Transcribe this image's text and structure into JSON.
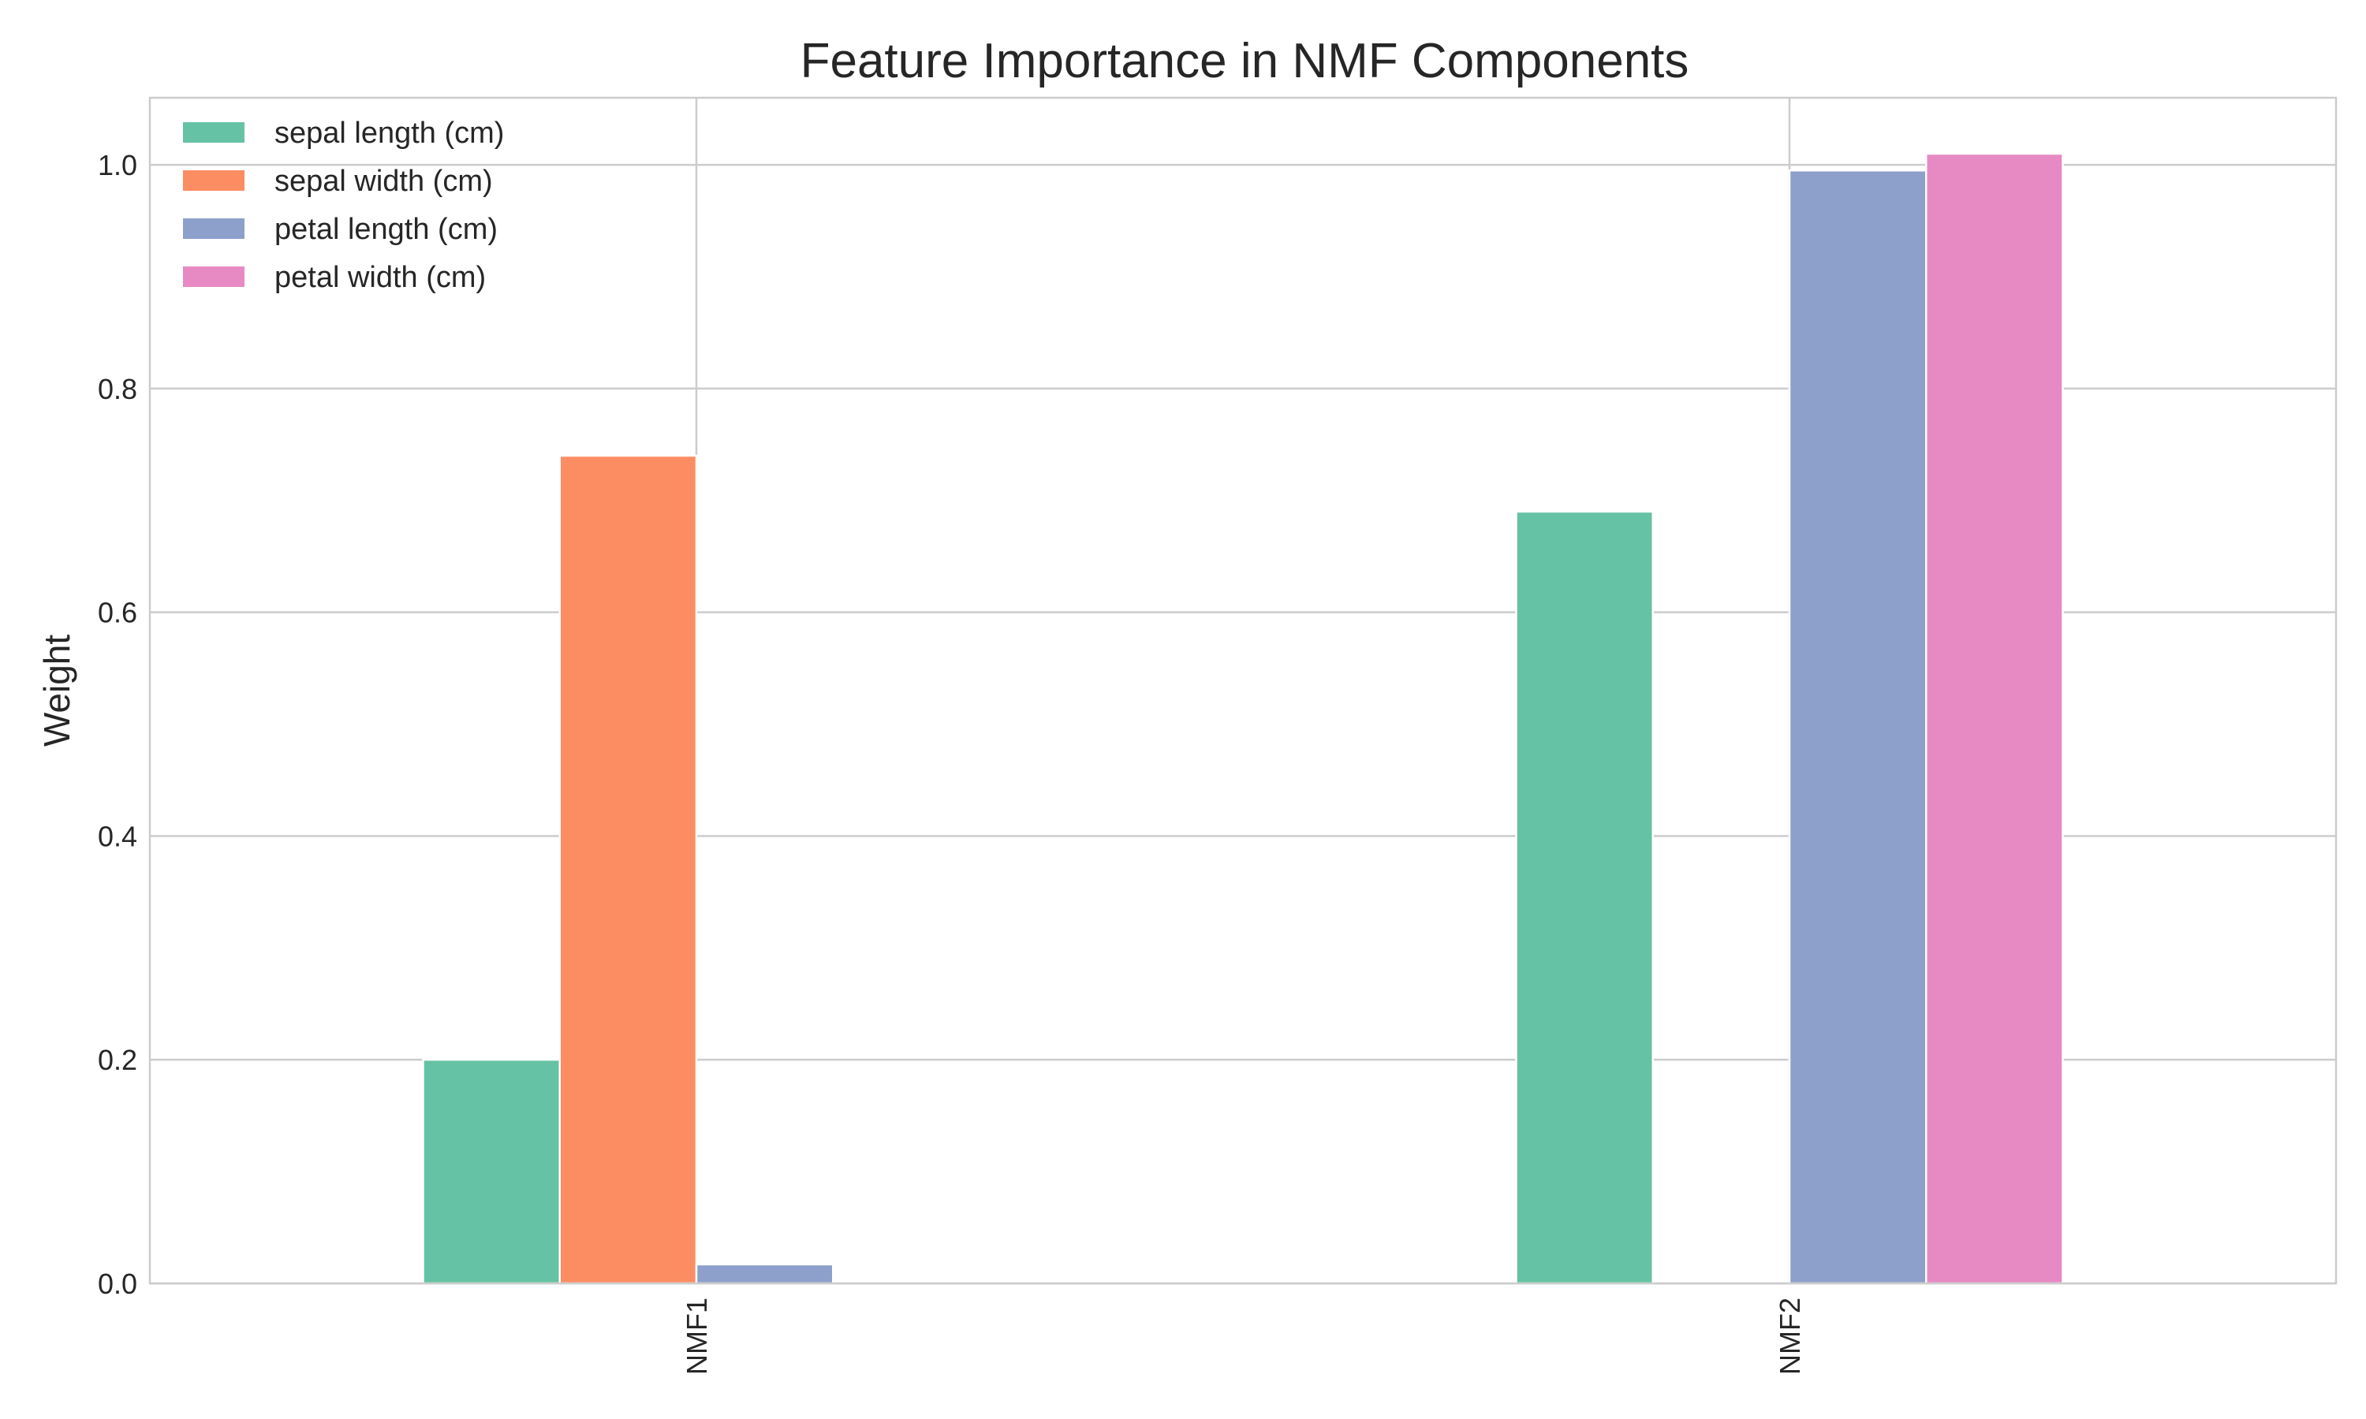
{
  "chart_data": {
    "type": "bar",
    "title": "Feature Importance in NMF Components",
    "xlabel": "",
    "ylabel": "Weight",
    "categories": [
      "NMF1",
      "NMF2"
    ],
    "series": [
      {
        "name": "sepal length (cm)",
        "color": "#66c2a5",
        "values": [
          0.2,
          0.69
        ]
      },
      {
        "name": "sepal width (cm)",
        "color": "#fc8d62",
        "values": [
          0.74,
          0.0
        ]
      },
      {
        "name": "petal length (cm)",
        "color": "#8da0cb",
        "values": [
          0.017,
          0.995
        ]
      },
      {
        "name": "petal width (cm)",
        "color": "#e78ac3",
        "values": [
          0.0,
          1.01
        ]
      }
    ],
    "ylim": [
      0,
      1.06
    ],
    "yticks": [
      0.0,
      0.2,
      0.4,
      0.6,
      0.8,
      1.0
    ],
    "ytick_labels": [
      "0.0",
      "0.2",
      "0.4",
      "0.6",
      "0.8",
      "1.0"
    ],
    "xtick_rotation": "vertical",
    "grid": true,
    "legend_position": "top-left"
  }
}
